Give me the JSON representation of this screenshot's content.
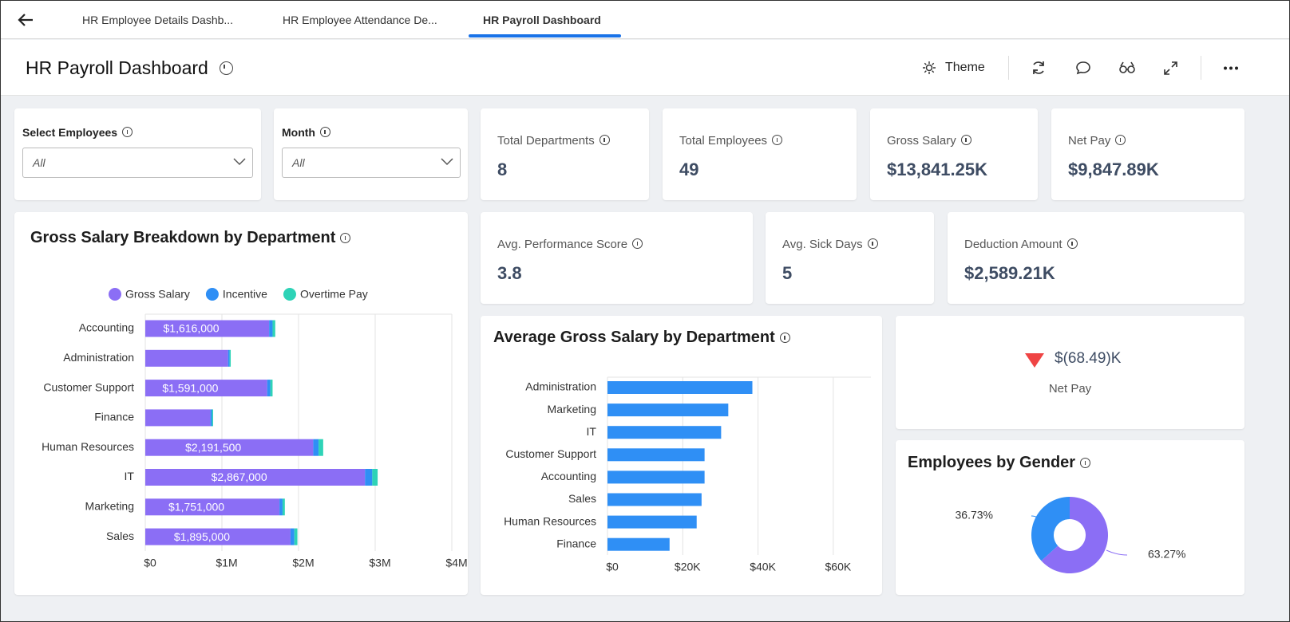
{
  "tabs": [
    "HR Employee Details Dashb...",
    "HR Employee Attendance De...",
    "HR Payroll Dashboard"
  ],
  "header": {
    "title": "HR Payroll Dashboard",
    "theme": "Theme"
  },
  "filters": [
    {
      "label": "Select Employees",
      "value": "All"
    },
    {
      "label": "Month",
      "value": "All"
    }
  ],
  "kpis": [
    {
      "label": "Total Departments",
      "value": "8"
    },
    {
      "label": "Total Employees",
      "value": "49"
    },
    {
      "label": "Gross Salary",
      "value": "$13,841.25K"
    },
    {
      "label": "Net Pay",
      "value": "$9,847.89K"
    },
    {
      "label": "Avg. Performance Score",
      "value": "3.8"
    },
    {
      "label": "Avg. Sick Days",
      "value": "5"
    },
    {
      "label": "Deduction Amount",
      "value": "$2,589.21K"
    }
  ],
  "variance": {
    "value": "$(68.49)K",
    "label": "Net Pay"
  },
  "chart_data": [
    {
      "type": "stacked-bar",
      "title": "Gross Salary Breakdown by Department",
      "categories": [
        "Accounting",
        "Administration",
        "Customer Support",
        "Finance",
        "Human Resources",
        "IT",
        "Marketing",
        "Sales"
      ],
      "series": [
        {
          "name": "Gross Salary",
          "color": "#8b6ef5",
          "values": [
            1616000,
            1080000,
            1591000,
            850000,
            2191500,
            2867000,
            1751000,
            1895000
          ],
          "value_labels": [
            "$1,616,000",
            null,
            "$1,591,000",
            null,
            "$2,191,500",
            "$2,867,000",
            "$1,751,000",
            "$1,895,000"
          ]
        },
        {
          "name": "Incentive",
          "color": "#2f8ff5",
          "values": [
            45000,
            20000,
            40000,
            20000,
            70000,
            95000,
            40000,
            50000
          ]
        },
        {
          "name": "Overtime Pay",
          "color": "#2ed3b7",
          "values": [
            35000,
            15000,
            30000,
            15000,
            60000,
            70000,
            30000,
            40000
          ]
        }
      ],
      "xlim": [
        0,
        4000000
      ],
      "xticks": [
        {
          "value": 0,
          "label": "$0"
        },
        {
          "value": 1000000,
          "label": "$1M"
        },
        {
          "value": 2000000,
          "label": "$2M"
        },
        {
          "value": 3000000,
          "label": "$3M"
        },
        {
          "value": 4000000,
          "label": "$4M"
        }
      ],
      "grid": true,
      "legend": "top"
    },
    {
      "type": "bar",
      "title": "Average Gross Salary by Department",
      "categories": [
        "Administration",
        "Marketing",
        "IT",
        "Customer Support",
        "Accounting",
        "Sales",
        "Human Resources",
        "Finance"
      ],
      "values": [
        38500,
        32100,
        30200,
        25800,
        25800,
        25000,
        23700,
        16500
      ],
      "color": "#2f8ff5",
      "xlim": [
        0,
        70000
      ],
      "xticks": [
        {
          "value": 0,
          "label": "$0"
        },
        {
          "value": 20000,
          "label": "$20K"
        },
        {
          "value": 40000,
          "label": "$40K"
        },
        {
          "value": 60000,
          "label": "$60K"
        }
      ],
      "grid": true
    },
    {
      "type": "pie",
      "title": "Employees by Gender",
      "values": [
        36.73,
        63.27
      ],
      "value_labels": [
        "36.73%",
        "63.27%"
      ],
      "colors": [
        "#2f8ff5",
        "#8b6ef5"
      ],
      "donut": true
    }
  ]
}
